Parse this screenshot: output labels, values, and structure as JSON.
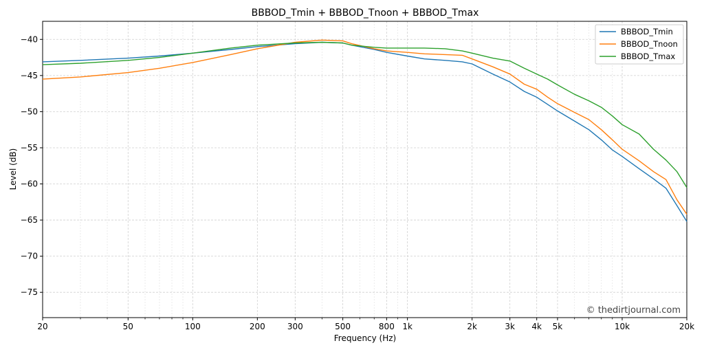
{
  "chart_data": {
    "type": "line",
    "title": "BBBOD_Tmin + BBBOD_Tnoon + BBBOD_Tmax",
    "xlabel": "Frequency (Hz)",
    "ylabel": "Level (dB)",
    "xscale": "log",
    "xlim": [
      20,
      20000
    ],
    "ylim": [
      -78.5,
      -37.5
    ],
    "grid": true,
    "legend_position": "top-right",
    "watermark": "© thedirtjournal.com",
    "x_ticks": [
      {
        "value": 20,
        "label": "20"
      },
      {
        "value": 50,
        "label": "50"
      },
      {
        "value": 100,
        "label": "100"
      },
      {
        "value": 200,
        "label": "200"
      },
      {
        "value": 300,
        "label": "300"
      },
      {
        "value": 500,
        "label": "500"
      },
      {
        "value": 800,
        "label": "800"
      },
      {
        "value": 1000,
        "label": "1k"
      },
      {
        "value": 2000,
        "label": "2k"
      },
      {
        "value": 3000,
        "label": "3k"
      },
      {
        "value": 4000,
        "label": "4k"
      },
      {
        "value": 5000,
        "label": "5k"
      },
      {
        "value": 10000,
        "label": "10k"
      },
      {
        "value": 20000,
        "label": "20k"
      }
    ],
    "x_minor_grid": [
      30,
      40,
      60,
      70,
      80,
      90,
      400,
      600,
      700,
      900,
      6000,
      7000,
      8000,
      9000
    ],
    "y_ticks": [
      -40,
      -45,
      -50,
      -55,
      -60,
      -65,
      -70,
      -75
    ],
    "series": [
      {
        "name": "BBBOD_Tmin",
        "color": "#1f77b4",
        "x": [
          20,
          30,
          50,
          70,
          100,
          150,
          200,
          300,
          400,
          500,
          550,
          700,
          800,
          1000,
          1200,
          1500,
          1800,
          2000,
          2500,
          3000,
          3500,
          4000,
          4500,
          5000,
          6000,
          7000,
          8000,
          9000,
          10000,
          12000,
          14000,
          16000,
          18000,
          20000
        ],
        "y": [
          -43.1,
          -42.9,
          -42.6,
          -42.3,
          -41.9,
          -41.4,
          -41.0,
          -40.6,
          -40.4,
          -40.5,
          -40.8,
          -41.4,
          -41.8,
          -42.3,
          -42.7,
          -42.9,
          -43.1,
          -43.4,
          -44.8,
          -45.9,
          -47.2,
          -48.0,
          -49.0,
          -49.9,
          -51.3,
          -52.5,
          -53.9,
          -55.3,
          -56.2,
          -57.9,
          -59.3,
          -60.6,
          -63.0,
          -65.2
        ]
      },
      {
        "name": "BBBOD_Tnoon",
        "color": "#ff7f0e",
        "x": [
          20,
          30,
          50,
          70,
          100,
          150,
          200,
          300,
          400,
          500,
          550,
          700,
          800,
          1000,
          1200,
          1500,
          1800,
          2000,
          2500,
          3000,
          3500,
          4000,
          4500,
          5000,
          6000,
          7000,
          8000,
          9000,
          10000,
          12000,
          14000,
          16000,
          18000,
          20000
        ],
        "y": [
          -45.5,
          -45.2,
          -44.6,
          -44.0,
          -43.2,
          -42.1,
          -41.3,
          -40.4,
          -40.1,
          -40.2,
          -40.6,
          -41.3,
          -41.6,
          -41.8,
          -42.0,
          -42.1,
          -42.2,
          -42.7,
          -43.8,
          -44.8,
          -46.2,
          -46.9,
          -48.0,
          -48.9,
          -50.1,
          -51.1,
          -52.5,
          -53.9,
          -55.2,
          -56.8,
          -58.3,
          -59.4,
          -62.2,
          -64.2
        ]
      },
      {
        "name": "BBBOD_Tmax",
        "color": "#2ca02c",
        "x": [
          20,
          30,
          50,
          70,
          100,
          150,
          200,
          300,
          400,
          500,
          550,
          700,
          800,
          1000,
          1200,
          1500,
          1800,
          2000,
          2500,
          3000,
          3500,
          4000,
          4500,
          5000,
          6000,
          7000,
          8000,
          9000,
          10000,
          12000,
          14000,
          16000,
          18000,
          20000
        ],
        "y": [
          -43.5,
          -43.3,
          -42.9,
          -42.5,
          -41.9,
          -41.2,
          -40.8,
          -40.5,
          -40.4,
          -40.5,
          -40.8,
          -41.1,
          -41.2,
          -41.2,
          -41.2,
          -41.3,
          -41.6,
          -41.9,
          -42.6,
          -43.0,
          -44.0,
          -44.8,
          -45.5,
          -46.3,
          -47.6,
          -48.5,
          -49.4,
          -50.6,
          -51.8,
          -53.1,
          -55.2,
          -56.7,
          -58.3,
          -60.5
        ]
      }
    ]
  }
}
